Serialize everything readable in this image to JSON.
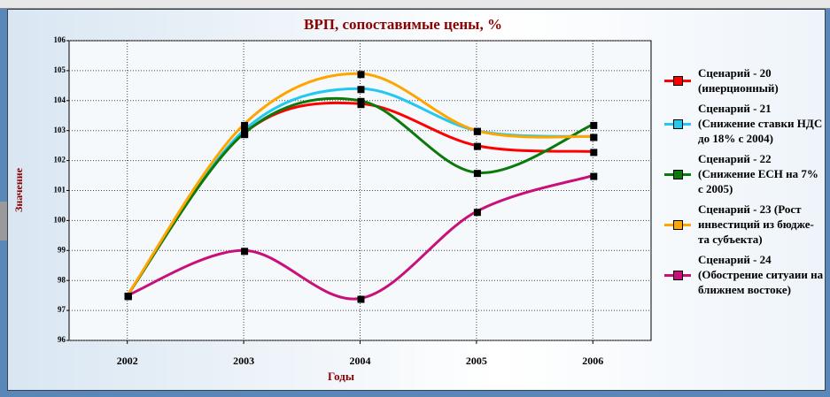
{
  "chart_data": {
    "type": "line",
    "title": "ВРП, сопоставимые цены, %",
    "y_label": "Значение",
    "x_label": "Годы",
    "categories": [
      "2002",
      "2003",
      "2004",
      "2005",
      "2006"
    ],
    "series": [
      {
        "name": "Сценарий - 20 (инерционный)",
        "color": "#ff0000",
        "values": [
          97.5,
          102.9,
          103.9,
          102.5,
          102.3
        ]
      },
      {
        "name": "Сценарий - 21 (Снижение ставки НДС до 18% с 2004)",
        "color": "#22c8f0",
        "values": [
          97.5,
          103.0,
          104.4,
          103.0,
          102.8
        ]
      },
      {
        "name": "Сценарий - 22 (Снижение ЕСН на 7% с 2005)",
        "color": "#0a7a0a",
        "values": [
          97.5,
          102.9,
          104.0,
          101.6,
          103.2
        ]
      },
      {
        "name": "Сценарий - 23 (Рост инвестиций из бюдже-та субъекта)",
        "color": "#ffa500",
        "values": [
          97.5,
          103.2,
          104.9,
          103.0,
          102.8
        ]
      },
      {
        "name": "Сценарий - 24 (Обострение ситуаии на ближнем востоке)",
        "color": "#c8107a",
        "values": [
          97.5,
          99.0,
          97.4,
          100.3,
          101.5
        ]
      }
    ],
    "ylim": [
      96,
      106
    ],
    "yticks": [
      96,
      97,
      98,
      99,
      100,
      101,
      102,
      103,
      104,
      105,
      106
    ],
    "grid": true,
    "legend": "right"
  }
}
